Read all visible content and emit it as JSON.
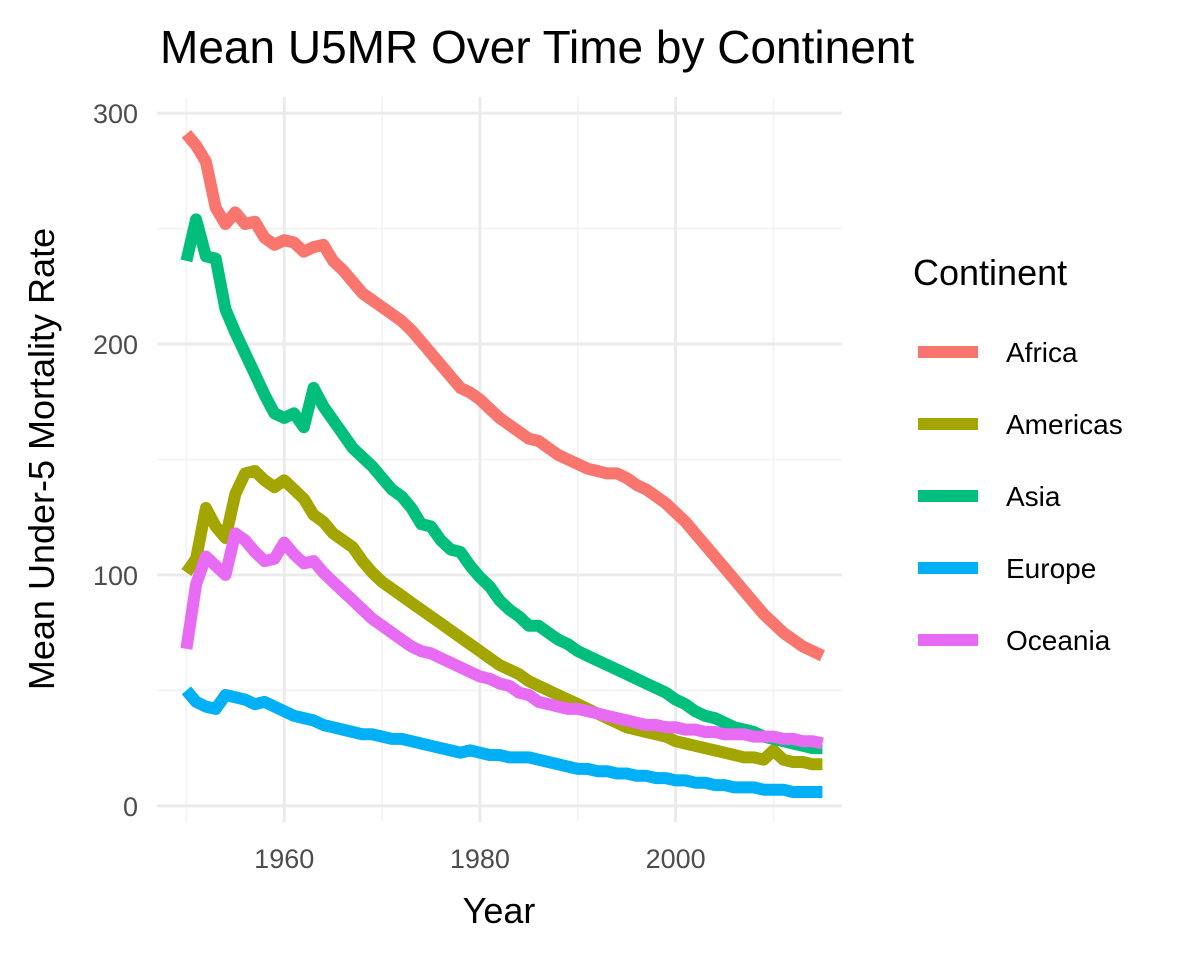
{
  "chart_data": {
    "type": "line",
    "title": "Mean U5MR Over Time by Continent",
    "xlabel": "Year",
    "ylabel": "Mean Under-5 Mortality Rate",
    "xlim": [
      1947,
      2017
    ],
    "ylim": [
      -7,
      307
    ],
    "x_ticks": [
      1960,
      1980,
      2000
    ],
    "x_minor_ticks": [
      1950,
      1970,
      1990,
      2010
    ],
    "y_ticks": [
      0,
      100,
      200,
      300
    ],
    "y_minor_ticks": [
      50,
      150,
      250
    ],
    "grid": true,
    "legend": {
      "title": "Continent",
      "position": "right",
      "entries": [
        "Africa",
        "Americas",
        "Asia",
        "Europe",
        "Oceania"
      ]
    },
    "series": [
      {
        "name": "Africa",
        "color": "#F8766D",
        "x": [
          1950,
          1951,
          1952,
          1953,
          1954,
          1955,
          1956,
          1957,
          1958,
          1959,
          1960,
          1961,
          1962,
          1963,
          1964,
          1965,
          1966,
          1967,
          1968,
          1969,
          1970,
          1971,
          1972,
          1973,
          1974,
          1975,
          1976,
          1977,
          1978,
          1979,
          1980,
          1981,
          1982,
          1983,
          1984,
          1985,
          1986,
          1987,
          1988,
          1989,
          1990,
          1991,
          1992,
          1993,
          1994,
          1995,
          1996,
          1997,
          1998,
          1999,
          2000,
          2001,
          2002,
          2003,
          2004,
          2005,
          2006,
          2007,
          2008,
          2009,
          2010,
          2011,
          2012,
          2013,
          2014,
          2015
        ],
        "values": [
          291,
          286,
          279,
          259,
          252,
          257,
          252,
          253,
          246,
          243,
          245,
          244,
          240,
          242,
          243,
          236,
          232,
          227,
          222,
          219,
          216,
          213,
          210,
          206,
          201,
          196,
          191,
          186,
          181,
          179,
          176,
          172,
          168,
          165,
          162,
          159,
          158,
          155,
          152,
          150,
          148,
          146,
          145,
          144,
          144,
          142,
          139,
          137,
          134,
          131,
          127,
          123,
          118,
          113,
          108,
          103,
          98,
          93,
          88,
          83,
          79,
          75,
          72,
          69,
          67,
          65
        ]
      },
      {
        "name": "Americas",
        "color": "#A3A500",
        "x": [
          1950,
          1951,
          1952,
          1953,
          1954,
          1955,
          1956,
          1957,
          1958,
          1959,
          1960,
          1961,
          1962,
          1963,
          1964,
          1965,
          1966,
          1967,
          1968,
          1969,
          1970,
          1971,
          1972,
          1973,
          1974,
          1975,
          1976,
          1977,
          1978,
          1979,
          1980,
          1981,
          1982,
          1983,
          1984,
          1985,
          1986,
          1987,
          1988,
          1989,
          1990,
          1991,
          1992,
          1993,
          1994,
          1995,
          1996,
          1997,
          1998,
          1999,
          2000,
          2001,
          2002,
          2003,
          2004,
          2005,
          2006,
          2007,
          2008,
          2009,
          2010,
          2011,
          2012,
          2013,
          2014,
          2015
        ],
        "values": [
          101,
          107,
          129,
          121,
          116,
          135,
          144,
          145,
          141,
          138,
          141,
          137,
          133,
          126,
          123,
          118,
          115,
          112,
          106,
          101,
          97,
          94,
          91,
          88,
          85,
          82,
          79,
          76,
          73,
          70,
          67,
          64,
          61,
          59,
          57,
          54,
          52,
          50,
          48,
          46,
          44,
          42,
          40,
          38,
          36,
          34,
          33,
          32,
          31,
          30,
          28,
          27,
          26,
          25,
          24,
          23,
          22,
          21,
          21,
          20,
          24,
          20,
          19,
          19,
          18,
          18
        ]
      },
      {
        "name": "Asia",
        "color": "#00BF7D",
        "x": [
          1950,
          1951,
          1952,
          1953,
          1954,
          1955,
          1956,
          1957,
          1958,
          1959,
          1960,
          1961,
          1962,
          1963,
          1964,
          1965,
          1966,
          1967,
          1968,
          1969,
          1970,
          1971,
          1972,
          1973,
          1974,
          1975,
          1976,
          1977,
          1978,
          1979,
          1980,
          1981,
          1982,
          1983,
          1984,
          1985,
          1986,
          1987,
          1988,
          1989,
          1990,
          1991,
          1992,
          1993,
          1994,
          1995,
          1996,
          1997,
          1998,
          1999,
          2000,
          2001,
          2002,
          2003,
          2004,
          2005,
          2006,
          2007,
          2008,
          2009,
          2010,
          2011,
          2012,
          2013,
          2014,
          2015
        ],
        "values": [
          236,
          254,
          238,
          237,
          215,
          205,
          196,
          187,
          178,
          170,
          168,
          170,
          164,
          181,
          173,
          167,
          161,
          155,
          151,
          147,
          142,
          137,
          134,
          129,
          122,
          121,
          115,
          111,
          110,
          104,
          99,
          95,
          89,
          85,
          82,
          78,
          78,
          75,
          72,
          70,
          67,
          65,
          63,
          61,
          59,
          57,
          55,
          53,
          51,
          49,
          46,
          44,
          41,
          39,
          38,
          36,
          34,
          33,
          32,
          30,
          29,
          28,
          27,
          26,
          25,
          25
        ]
      },
      {
        "name": "Europe",
        "color": "#00B0F6",
        "x": [
          1950,
          1951,
          1952,
          1953,
          1954,
          1955,
          1956,
          1957,
          1958,
          1959,
          1960,
          1961,
          1962,
          1963,
          1964,
          1965,
          1966,
          1967,
          1968,
          1969,
          1970,
          1971,
          1972,
          1973,
          1974,
          1975,
          1976,
          1977,
          1978,
          1979,
          1980,
          1981,
          1982,
          1983,
          1984,
          1985,
          1986,
          1987,
          1988,
          1989,
          1990,
          1991,
          1992,
          1993,
          1994,
          1995,
          1996,
          1997,
          1998,
          1999,
          2000,
          2001,
          2002,
          2003,
          2004,
          2005,
          2006,
          2007,
          2008,
          2009,
          2010,
          2011,
          2012,
          2013,
          2014,
          2015
        ],
        "values": [
          50,
          45,
          43,
          42,
          48,
          47,
          46,
          44,
          45,
          43,
          41,
          39,
          38,
          37,
          35,
          34,
          33,
          32,
          31,
          31,
          30,
          29,
          29,
          28,
          27,
          26,
          25,
          24,
          23,
          24,
          23,
          22,
          22,
          21,
          21,
          21,
          20,
          19,
          18,
          17,
          16,
          16,
          15,
          15,
          14,
          14,
          13,
          13,
          12,
          12,
          11,
          11,
          10,
          10,
          9,
          9,
          8,
          8,
          8,
          7,
          7,
          7,
          6,
          6,
          6,
          6
        ]
      },
      {
        "name": "Oceania",
        "color": "#E76BF3",
        "x": [
          1950,
          1951,
          1952,
          1953,
          1954,
          1955,
          1956,
          1957,
          1958,
          1959,
          1960,
          1961,
          1962,
          1963,
          1964,
          1965,
          1966,
          1967,
          1968,
          1969,
          1970,
          1971,
          1972,
          1973,
          1974,
          1975,
          1976,
          1977,
          1978,
          1979,
          1980,
          1981,
          1982,
          1983,
          1984,
          1985,
          1986,
          1987,
          1988,
          1989,
          1990,
          1991,
          1992,
          1993,
          1994,
          1995,
          1996,
          1997,
          1998,
          1999,
          2000,
          2001,
          2002,
          2003,
          2004,
          2005,
          2006,
          2007,
          2008,
          2009,
          2010,
          2011,
          2012,
          2013,
          2014,
          2015
        ],
        "values": [
          68,
          96,
          108,
          104,
          100,
          118,
          115,
          110,
          106,
          107,
          114,
          109,
          105,
          106,
          101,
          97,
          93,
          89,
          85,
          81,
          78,
          75,
          72,
          69,
          67,
          66,
          64,
          62,
          60,
          58,
          56,
          55,
          53,
          52,
          49,
          48,
          45,
          44,
          43,
          42,
          42,
          41,
          40,
          39,
          38,
          37,
          36,
          35,
          35,
          34,
          34,
          33,
          33,
          32,
          32,
          31,
          31,
          31,
          30,
          30,
          30,
          29,
          29,
          28,
          28,
          27
        ]
      }
    ]
  }
}
